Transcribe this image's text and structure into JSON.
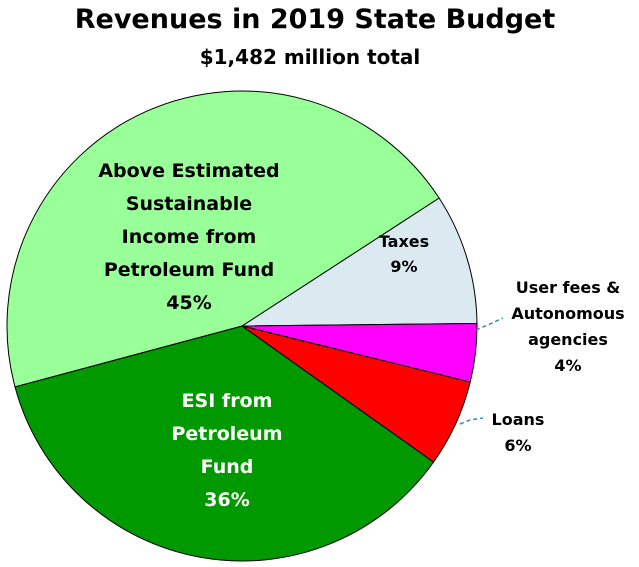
{
  "chart_data": {
    "type": "pie",
    "title": "Revenues in 2019 State Budget",
    "subtitle": "$1,482 million total",
    "colors": {
      "taxes": "#dbe9f1",
      "user_fees": "#ff00ff",
      "loans": "#ff0000",
      "esi": "#009900",
      "above_esi": "#99ff99"
    },
    "slices": [
      {
        "key": "taxes",
        "label": [
          "Taxes"
        ],
        "value": 9,
        "pct_label": "9%"
      },
      {
        "key": "user_fees",
        "label": [
          "User fees &",
          "Autonomous",
          "agencies"
        ],
        "value": 4,
        "pct_label": "4%"
      },
      {
        "key": "loans",
        "label": [
          "Loans"
        ],
        "value": 6,
        "pct_label": "6%"
      },
      {
        "key": "esi",
        "label": [
          "ESI from",
          "Petroleum",
          "Fund"
        ],
        "value": 36,
        "pct_label": "36%"
      },
      {
        "key": "above_esi",
        "label": [
          "Above Estimated",
          "Sustainable",
          "Income from",
          "Petroleum Fund"
        ],
        "value": 45,
        "pct_label": "45%"
      }
    ]
  }
}
